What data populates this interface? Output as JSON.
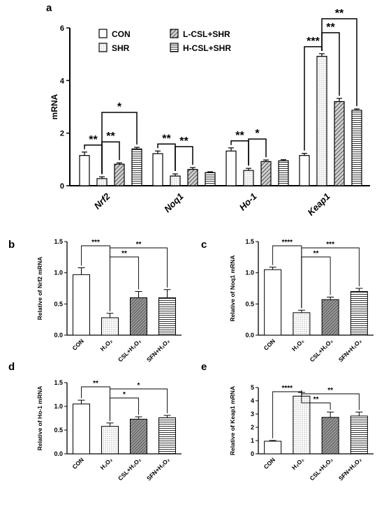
{
  "chart_data": [
    {
      "panel": "a",
      "type": "bar",
      "ylabel": "mRNA",
      "ylim": [
        0,
        6
      ],
      "yticks": [
        "0",
        "2",
        "4",
        "6"
      ],
      "categories": [
        "Nrf2",
        "Noq1",
        "Ho-1",
        "Keap1"
      ],
      "series": [
        {
          "name": "CON",
          "values": [
            1.15,
            1.22,
            1.32,
            1.15
          ],
          "errors": [
            0.13,
            0.1,
            0.12,
            0.08
          ],
          "fill": "white"
        },
        {
          "name": "SHR",
          "values": [
            0.27,
            0.37,
            0.58,
            4.92
          ],
          "errors": [
            0.07,
            0.08,
            0.08,
            0.1
          ],
          "fill": "dots"
        },
        {
          "name": "L-CSL+SHR",
          "values": [
            0.82,
            0.62,
            0.92,
            3.2
          ],
          "errors": [
            0.05,
            0.07,
            0.06,
            0.12
          ],
          "fill": "hatch"
        },
        {
          "name": "H-CSL+SHR",
          "values": [
            1.4,
            0.5,
            0.95,
            2.87
          ],
          "errors": [
            0.06,
            0.03,
            0.04,
            0.05
          ],
          "fill": "hlines"
        }
      ],
      "significance": [
        {
          "cat": 0,
          "from": 0,
          "to": 1,
          "label": "**"
        },
        {
          "cat": 0,
          "from": 1,
          "to": 2,
          "label": "**"
        },
        {
          "cat": 0,
          "from": 1,
          "to": 3,
          "label": "*"
        },
        {
          "cat": 1,
          "from": 0,
          "to": 1,
          "label": "**"
        },
        {
          "cat": 1,
          "from": 1,
          "to": 2,
          "label": "**"
        },
        {
          "cat": 2,
          "from": 0,
          "to": 1,
          "label": "**"
        },
        {
          "cat": 2,
          "from": 1,
          "to": 2,
          "label": "*"
        },
        {
          "cat": 3,
          "from": 0,
          "to": 1,
          "label": "***"
        },
        {
          "cat": 3,
          "from": 1,
          "to": 2,
          "label": "**"
        },
        {
          "cat": 3,
          "from": 1,
          "to": 3,
          "label": "**"
        }
      ]
    },
    {
      "panel": "b",
      "type": "bar",
      "ylabel": "Relative of Nrf2 mRNA",
      "ylim": [
        0,
        1.5
      ],
      "yticks": [
        "0.0",
        "0.5",
        "1.0",
        "1.5"
      ],
      "categories": [
        "CON",
        "H₂O₂",
        "CSL+H₂O₂",
        "SFN+H₂O₂"
      ],
      "values": [
        0.97,
        0.28,
        0.6,
        0.6
      ],
      "errors": [
        0.11,
        0.07,
        0.1,
        0.13
      ],
      "significance": [
        {
          "from": 0,
          "to": 1,
          "label": "***"
        },
        {
          "from": 1,
          "to": 2,
          "label": "**"
        },
        {
          "from": 1,
          "to": 3,
          "label": "**"
        }
      ]
    },
    {
      "panel": "c",
      "type": "bar",
      "ylabel": "Relative of Noq1 mRNA",
      "ylim": [
        0,
        1.5
      ],
      "yticks": [
        "0.0",
        "0.5",
        "1.0",
        "1.5"
      ],
      "categories": [
        "CON",
        "H₂O₂",
        "CSL+H₂O₂",
        "SFN+H₂O₂"
      ],
      "values": [
        1.05,
        0.36,
        0.57,
        0.7
      ],
      "errors": [
        0.04,
        0.04,
        0.04,
        0.05
      ],
      "significance": [
        {
          "from": 0,
          "to": 1,
          "label": "****"
        },
        {
          "from": 1,
          "to": 2,
          "label": "**"
        },
        {
          "from": 1,
          "to": 3,
          "label": "***"
        }
      ]
    },
    {
      "panel": "d",
      "type": "bar",
      "ylabel": "Relative of Ho-1 mRNA",
      "ylim": [
        0,
        1.5
      ],
      "yticks": [
        "0.0",
        "0.5",
        "1.0",
        "1.5"
      ],
      "categories": [
        "CON",
        "H₂O₂",
        "CSL+H₂O₂",
        "SFN+H₂O₂"
      ],
      "values": [
        1.05,
        0.58,
        0.73,
        0.76
      ],
      "errors": [
        0.08,
        0.07,
        0.05,
        0.05
      ],
      "significance": [
        {
          "from": 0,
          "to": 1,
          "label": "**"
        },
        {
          "from": 1,
          "to": 2,
          "label": "*"
        },
        {
          "from": 1,
          "to": 3,
          "label": "*"
        }
      ]
    },
    {
      "panel": "e",
      "type": "bar",
      "ylabel": "Relative of Keap1 mRNA",
      "ylim": [
        0,
        5
      ],
      "yticks": [
        "0",
        "1",
        "2",
        "3",
        "4",
        "5"
      ],
      "categories": [
        "CON",
        "H₂O₂",
        "CSL+H₂O₂",
        "SFN+H₂O₂"
      ],
      "values": [
        0.95,
        4.35,
        2.75,
        2.85
      ],
      "errors": [
        0.06,
        0.28,
        0.4,
        0.3
      ],
      "significance": [
        {
          "from": 0,
          "to": 1,
          "label": "****"
        },
        {
          "from": 1,
          "to": 2,
          "label": "**"
        },
        {
          "from": 1,
          "to": 3,
          "label": "**"
        }
      ]
    }
  ],
  "colors": {
    "ink": "#000000",
    "bar_fill": "#ffffff",
    "pattern": "#444444"
  }
}
